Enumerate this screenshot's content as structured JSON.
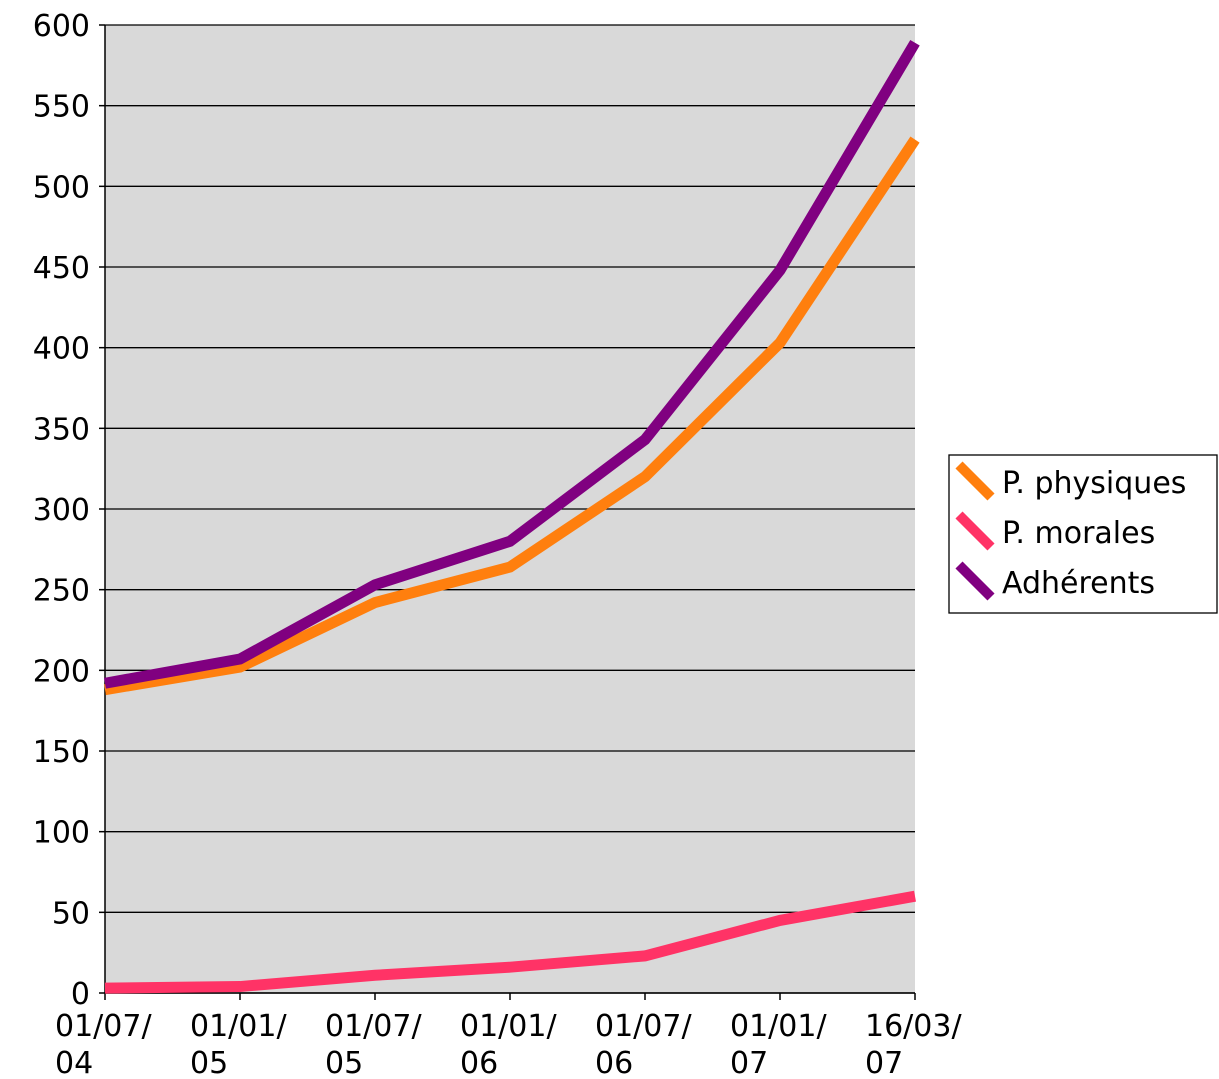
{
  "chart_data": {
    "type": "line",
    "title": "",
    "xlabel": "",
    "ylabel": "",
    "x": [
      "01/07/04",
      "01/01/05",
      "01/07/05",
      "01/01/06",
      "01/07/06",
      "01/01/07",
      "16/03/07"
    ],
    "x_tick_labels": [
      [
        "01/07/",
        "04"
      ],
      [
        "01/01/",
        "05"
      ],
      [
        "01/07/",
        "05"
      ],
      [
        "01/01/",
        "06"
      ],
      [
        "01/07/",
        "06"
      ],
      [
        "01/01/",
        "07"
      ],
      [
        "16/03/",
        "07"
      ]
    ],
    "ylim": [
      0,
      600
    ],
    "y_ticks": [
      0,
      50,
      100,
      150,
      200,
      250,
      300,
      350,
      400,
      450,
      500,
      550,
      600
    ],
    "grid": true,
    "plot_background": "#d9d9d9",
    "legend_position": "right",
    "series": [
      {
        "name": "P. physiques",
        "color": "#ff7f0e",
        "values": [
          188,
          202,
          242,
          264,
          320,
          403,
          529
        ]
      },
      {
        "name": "P. morales",
        "color": "#ff3366",
        "values": [
          3,
          4,
          11,
          16,
          23,
          45,
          60
        ]
      },
      {
        "name": "Adhérents",
        "color": "#800080",
        "values": [
          192,
          207,
          253,
          280,
          343,
          448,
          589
        ]
      }
    ]
  }
}
